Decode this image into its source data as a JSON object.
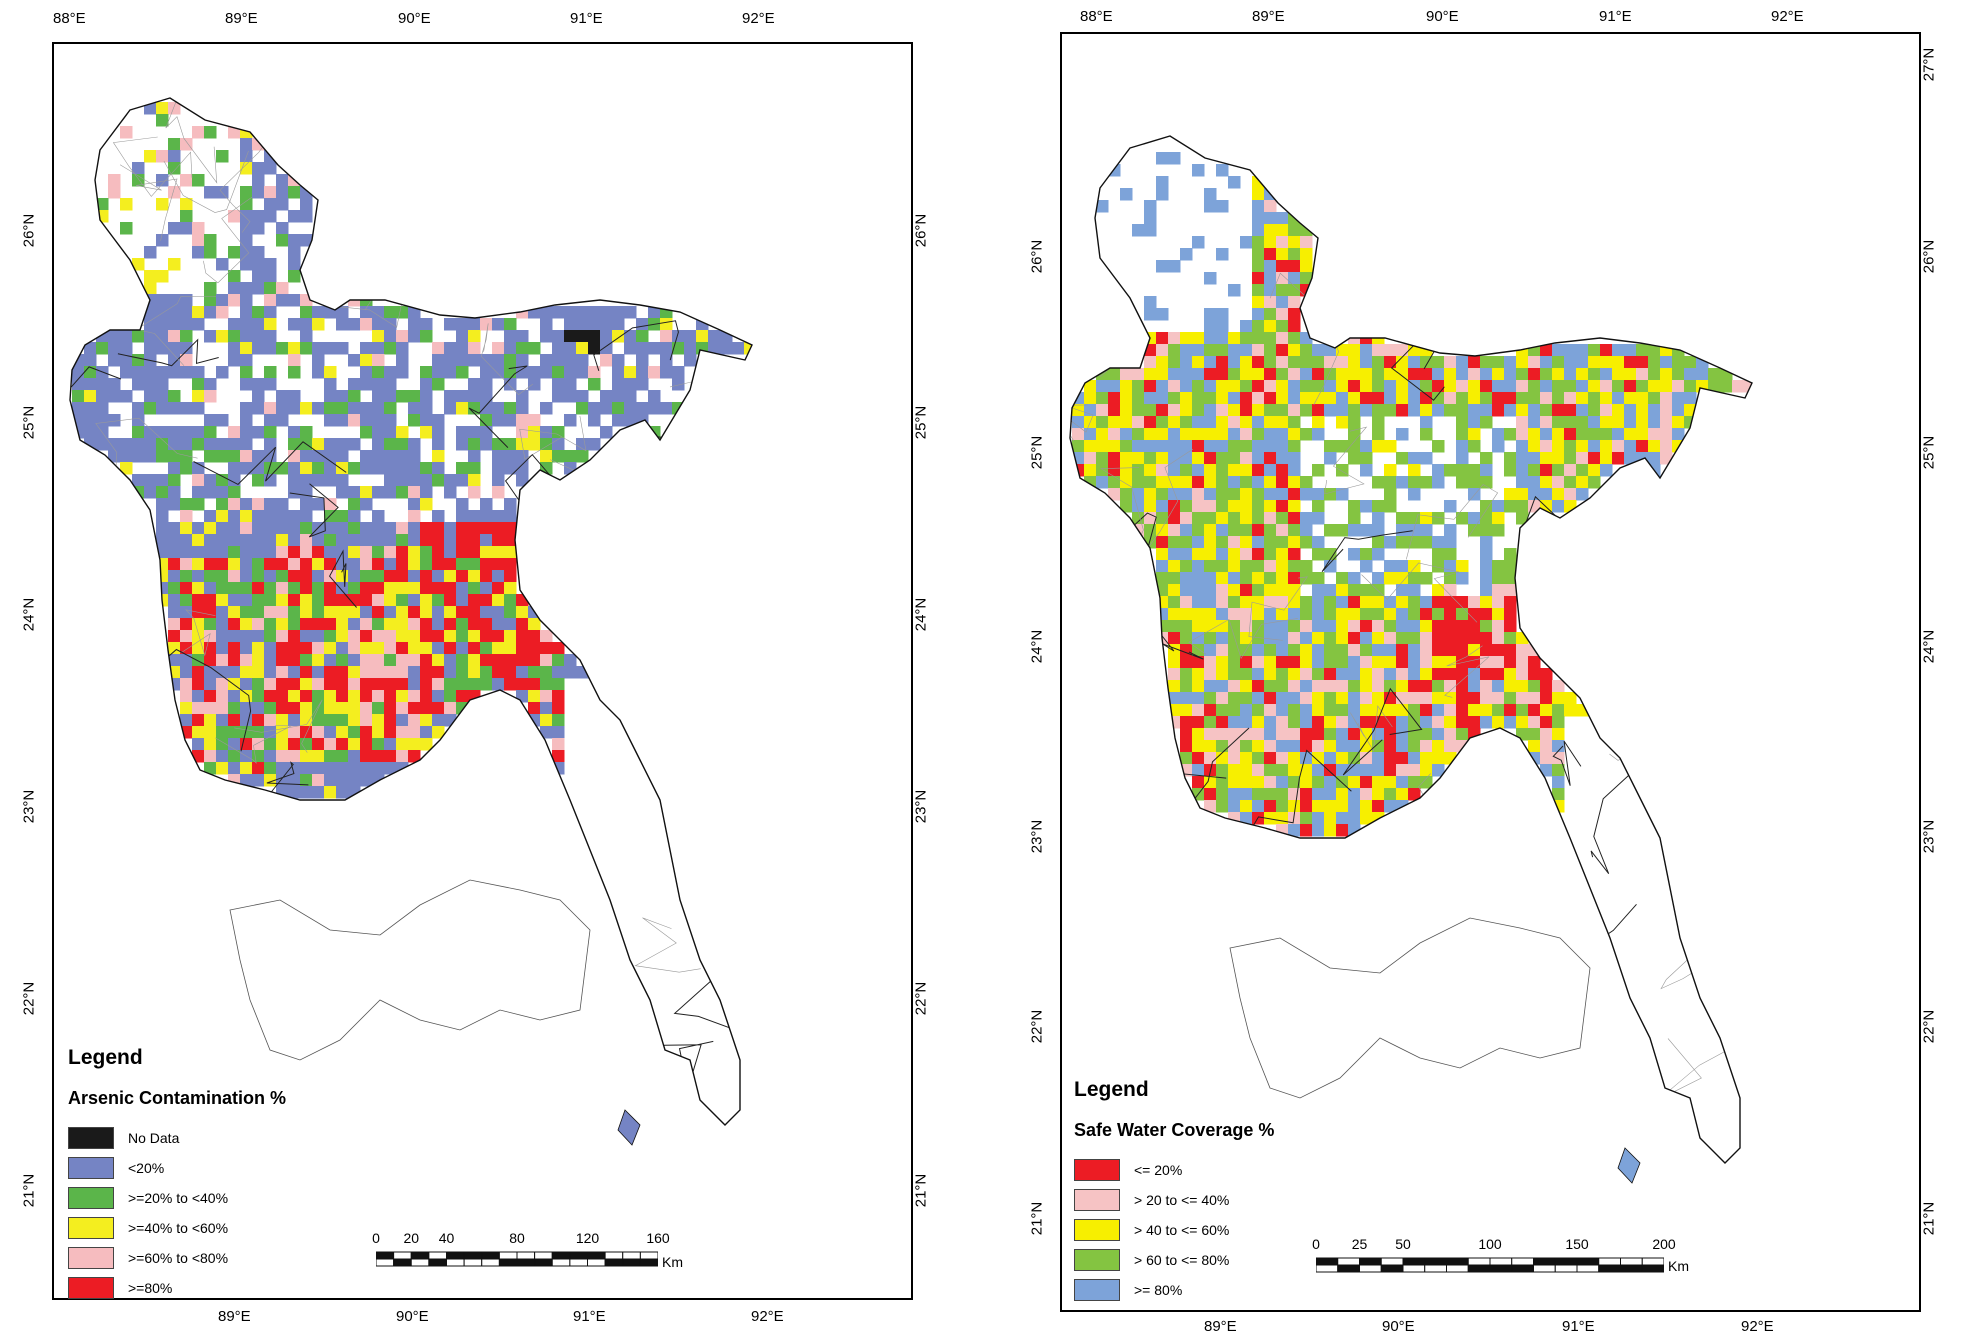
{
  "maps": [
    {
      "longitude_ticks_top": [
        "88°E",
        "89°E",
        "90°E",
        "91°E",
        "92°E"
      ],
      "longitude_ticks_bottom": [
        "89°E",
        "90°E",
        "91°E",
        "92°E"
      ],
      "latitude_ticks_left": [
        "26°N",
        "25°N",
        "24°N",
        "23°N",
        "22°N",
        "21°N"
      ],
      "latitude_ticks_right": [
        "26°N",
        "25°N",
        "24°N",
        "23°N",
        "22°N",
        "21°N"
      ],
      "legend": {
        "heading": "Legend",
        "title": "Arsenic Contamination %",
        "items": [
          {
            "label": "No Data",
            "color": "#1a1a1a"
          },
          {
            "label": "<20%",
            "color": "#7584c4"
          },
          {
            "label": ">=20% to <40%",
            "color": "#5bb54a"
          },
          {
            "label": ">=40% to <60%",
            "color": "#f4ee1f"
          },
          {
            "label": ">=60% to <80%",
            "color": "#f6bcbf"
          },
          {
            "label": ">=80%",
            "color": "#ec1c24"
          }
        ]
      },
      "scalebar": {
        "labels": [
          "0",
          "20",
          "40",
          "80",
          "120",
          "160"
        ],
        "unit": "Km"
      }
    },
    {
      "longitude_ticks_top": [
        "88°E",
        "89°E",
        "90°E",
        "91°E",
        "92°E"
      ],
      "longitude_ticks_bottom": [
        "89°E",
        "90°E",
        "91°E",
        "92°E"
      ],
      "latitude_ticks_left": [
        "26°N",
        "25°N",
        "24°N",
        "23°N",
        "22°N",
        "21°N"
      ],
      "latitude_ticks_right": [
        "27°N",
        "26°N",
        "25°N",
        "24°N",
        "23°N",
        "22°N",
        "21°N"
      ],
      "legend": {
        "heading": "Legend",
        "title": "Safe Water Coverage %",
        "items": [
          {
            "label": "<= 20%",
            "color": "#ec1c24"
          },
          {
            "label": "> 20 to <= 40%",
            "color": "#f6c3c4"
          },
          {
            "label": "> 40 to <= 60%",
            "color": "#f7ef00"
          },
          {
            "label": "> 60 to <= 80%",
            "color": "#84c441"
          },
          {
            "label": ">= 80%",
            "color": "#7da3d9"
          }
        ]
      },
      "scalebar": {
        "labels": [
          "0",
          "25",
          "50",
          "100",
          "150",
          "200"
        ],
        "unit": "Km"
      }
    }
  ]
}
